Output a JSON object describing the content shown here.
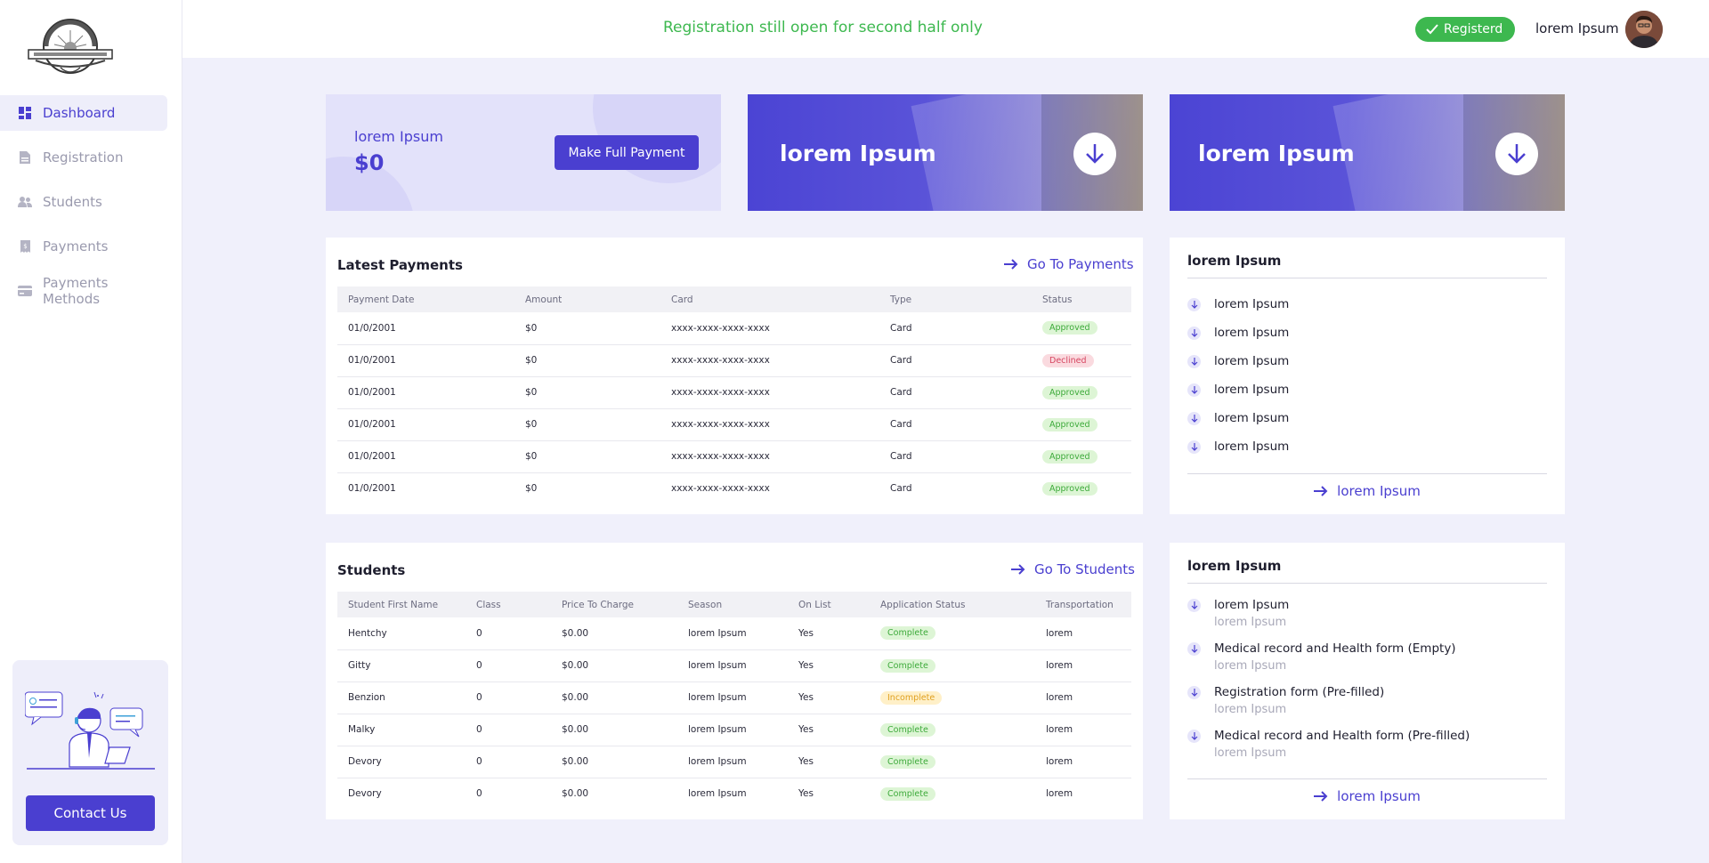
{
  "sidebar": {
    "nav": [
      {
        "label": "Dashboard",
        "icon": "dashboard-icon",
        "active": true
      },
      {
        "label": "Registration",
        "icon": "document-icon"
      },
      {
        "label": "Students",
        "icon": "users-icon"
      },
      {
        "label": "Payments",
        "icon": "receipt-icon"
      },
      {
        "label": "Payments Methods",
        "icon": "card-icon"
      }
    ],
    "contact_label": "Contact Us"
  },
  "header": {
    "notice": "Registration still open for second half only",
    "registration_badge": "Registerd",
    "username": "lorem Ipsum"
  },
  "summary": {
    "label": "lorem Ipsum",
    "amount": "$0",
    "full_payment_label": "Make Full Payment"
  },
  "promo_cards": [
    {
      "title": "lorem Ipsum"
    },
    {
      "title": "lorem Ipsum"
    }
  ],
  "latest_payments": {
    "title": "Latest Payments",
    "link": "Go To Payments",
    "columns": [
      "Payment Date",
      "Amount",
      "Card",
      "Type",
      "Status"
    ],
    "rows": [
      {
        "date": "01/0/2001",
        "amount": "$0",
        "card": "xxxx-xxxx-xxxx-xxxx",
        "type": "Card",
        "status": "Approved"
      },
      {
        "date": "01/0/2001",
        "amount": "$0",
        "card": "xxxx-xxxx-xxxx-xxxx",
        "type": "Card",
        "status": "Declined"
      },
      {
        "date": "01/0/2001",
        "amount": "$0",
        "card": "xxxx-xxxx-xxxx-xxxx",
        "type": "Card",
        "status": "Approved"
      },
      {
        "date": "01/0/2001",
        "amount": "$0",
        "card": "xxxx-xxxx-xxxx-xxxx",
        "type": "Card",
        "status": "Approved"
      },
      {
        "date": "01/0/2001",
        "amount": "$0",
        "card": "xxxx-xxxx-xxxx-xxxx",
        "type": "Card",
        "status": "Approved"
      },
      {
        "date": "01/0/2001",
        "amount": "$0",
        "card": "xxxx-xxxx-xxxx-xxxx",
        "type": "Card",
        "status": "Approved"
      }
    ]
  },
  "students": {
    "title": "Students",
    "link": "Go To Students",
    "columns": [
      "Student First Name",
      "Class",
      "Price To Charge",
      "Season",
      "On List",
      "Application Status",
      "Transportation"
    ],
    "rows": [
      {
        "name": "Hentchy",
        "class": "0",
        "price": "$0.00",
        "season": "lorem Ipsum",
        "on_list": "Yes",
        "status": "Complete",
        "transport": "lorem"
      },
      {
        "name": "Gitty",
        "class": "0",
        "price": "$0.00",
        "season": "lorem Ipsum",
        "on_list": "Yes",
        "status": "Complete",
        "transport": "lorem"
      },
      {
        "name": "Benzion",
        "class": "0",
        "price": "$0.00",
        "season": "lorem Ipsum",
        "on_list": "Yes",
        "status": "Incomplete",
        "transport": "lorem"
      },
      {
        "name": "Malky",
        "class": "0",
        "price": "$0.00",
        "season": "lorem Ipsum",
        "on_list": "Yes",
        "status": "Complete",
        "transport": "lorem"
      },
      {
        "name": "Devory",
        "class": "0",
        "price": "$0.00",
        "season": "lorem Ipsum",
        "on_list": "Yes",
        "status": "Complete",
        "transport": "lorem"
      },
      {
        "name": "Devory",
        "class": "0",
        "price": "$0.00",
        "season": "lorem Ipsum",
        "on_list": "Yes",
        "status": "Complete",
        "transport": "lorem"
      }
    ]
  },
  "downloads_panel": {
    "title": "lorem Ipsum",
    "items": [
      "lorem Ipsum",
      "lorem Ipsum",
      "lorem Ipsum",
      "lorem Ipsum",
      "lorem Ipsum",
      "lorem Ipsum"
    ],
    "link": "lorem Ipsum"
  },
  "forms_panel": {
    "title": "lorem Ipsum",
    "items": [
      {
        "title": "lorem Ipsum",
        "sub": "lorem Ipsum"
      },
      {
        "title": "Medical record and Health form (Empty)",
        "sub": "lorem Ipsum"
      },
      {
        "title": "Registration form (Pre-filled)",
        "sub": "lorem Ipsum"
      },
      {
        "title": "Medical record and Health form (Pre-filled)",
        "sub": "lorem Ipsum"
      }
    ],
    "link": "lorem Ipsum"
  },
  "colors": {
    "accent": "#4A3FD0",
    "success": "#3DB84F",
    "danger": "#D64560",
    "warning": "#E0A020",
    "background": "#F0F0FB"
  }
}
